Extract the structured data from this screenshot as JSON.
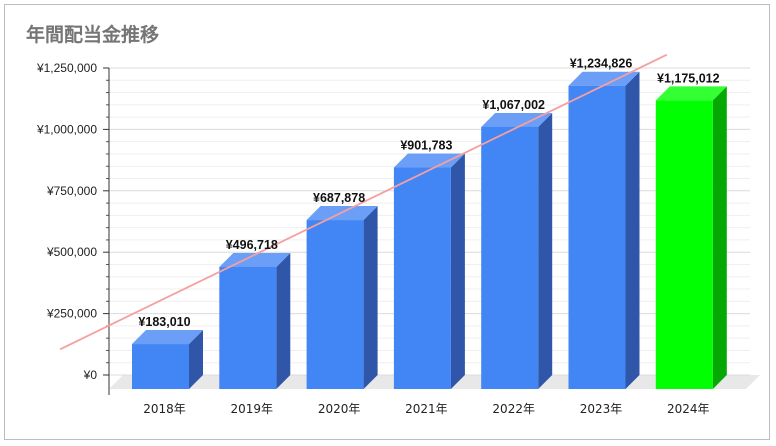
{
  "chart_data": {
    "type": "bar",
    "title": "年間配当金推移",
    "categories": [
      "2018年",
      "2019年",
      "2020年",
      "2021年",
      "2022年",
      "2023年",
      "2024年"
    ],
    "values": [
      183010,
      496718,
      687878,
      901783,
      1067002,
      1234826,
      1175012
    ],
    "data_labels": [
      "¥183,010",
      "¥496,718",
      "¥687,878",
      "¥901,783",
      "¥1,067,002",
      "¥1,234,826",
      "¥1,175,012"
    ],
    "y_ticks": [
      {
        "value": 0,
        "label": "¥0"
      },
      {
        "value": 250000,
        "label": "¥250,000"
      },
      {
        "value": 500000,
        "label": "¥500,000"
      },
      {
        "value": 750000,
        "label": "¥750,000"
      },
      {
        "value": 1000000,
        "label": "¥1,000,000"
      },
      {
        "value": 1250000,
        "label": "¥1,250,000"
      }
    ],
    "ylim": [
      0,
      1250000
    ],
    "grid": true,
    "legend": "none",
    "trendline": true,
    "style": "3d",
    "colors": {
      "bar_front": "#4285f4",
      "bar_top": "#6b9ff7",
      "bar_side": "#2f56a8",
      "highlight_front": "#00ff00",
      "highlight_top": "#33ff33",
      "highlight_side": "#06a806",
      "trend": "#f4a0a0",
      "grid": "#dcdcdc",
      "floor": "#e8e8e8"
    },
    "highlight_index": 6
  }
}
